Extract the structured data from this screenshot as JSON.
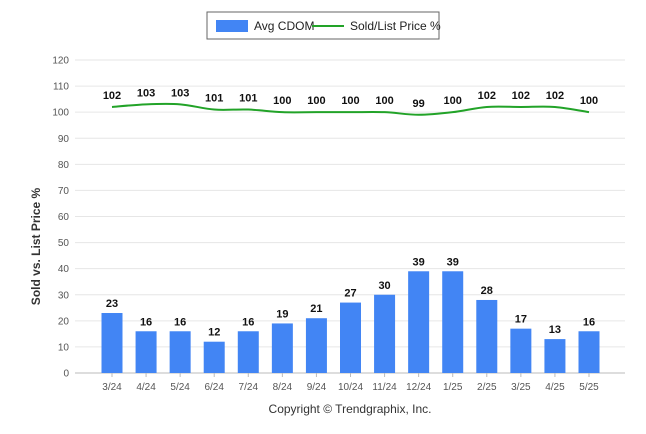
{
  "chart_data": {
    "type": "bar",
    "categories": [
      "3/24",
      "4/24",
      "5/24",
      "6/24",
      "7/24",
      "8/24",
      "9/24",
      "10/24",
      "11/24",
      "12/24",
      "1/25",
      "2/25",
      "3/25",
      "4/25",
      "5/25"
    ],
    "series": [
      {
        "name": "Avg CDOM",
        "type": "bar",
        "color": "#4285f4",
        "values": [
          23,
          16,
          16,
          12,
          16,
          19,
          21,
          27,
          30,
          39,
          39,
          28,
          17,
          13,
          16
        ]
      },
      {
        "name": "Sold/List Price %",
        "type": "line",
        "color": "#22a328",
        "values": [
          102,
          103,
          103,
          101,
          101,
          100,
          100,
          100,
          100,
          99,
          100,
          102,
          102,
          102,
          100
        ]
      }
    ],
    "ylabel": "Sold vs. List Price %",
    "ylim": [
      0,
      120
    ],
    "yticks": [
      0,
      10,
      20,
      30,
      40,
      50,
      60,
      70,
      80,
      90,
      100,
      110,
      120
    ],
    "grid": true,
    "legend_position": "top-center",
    "footer": "Copyright © Trendgraphix, Inc."
  }
}
